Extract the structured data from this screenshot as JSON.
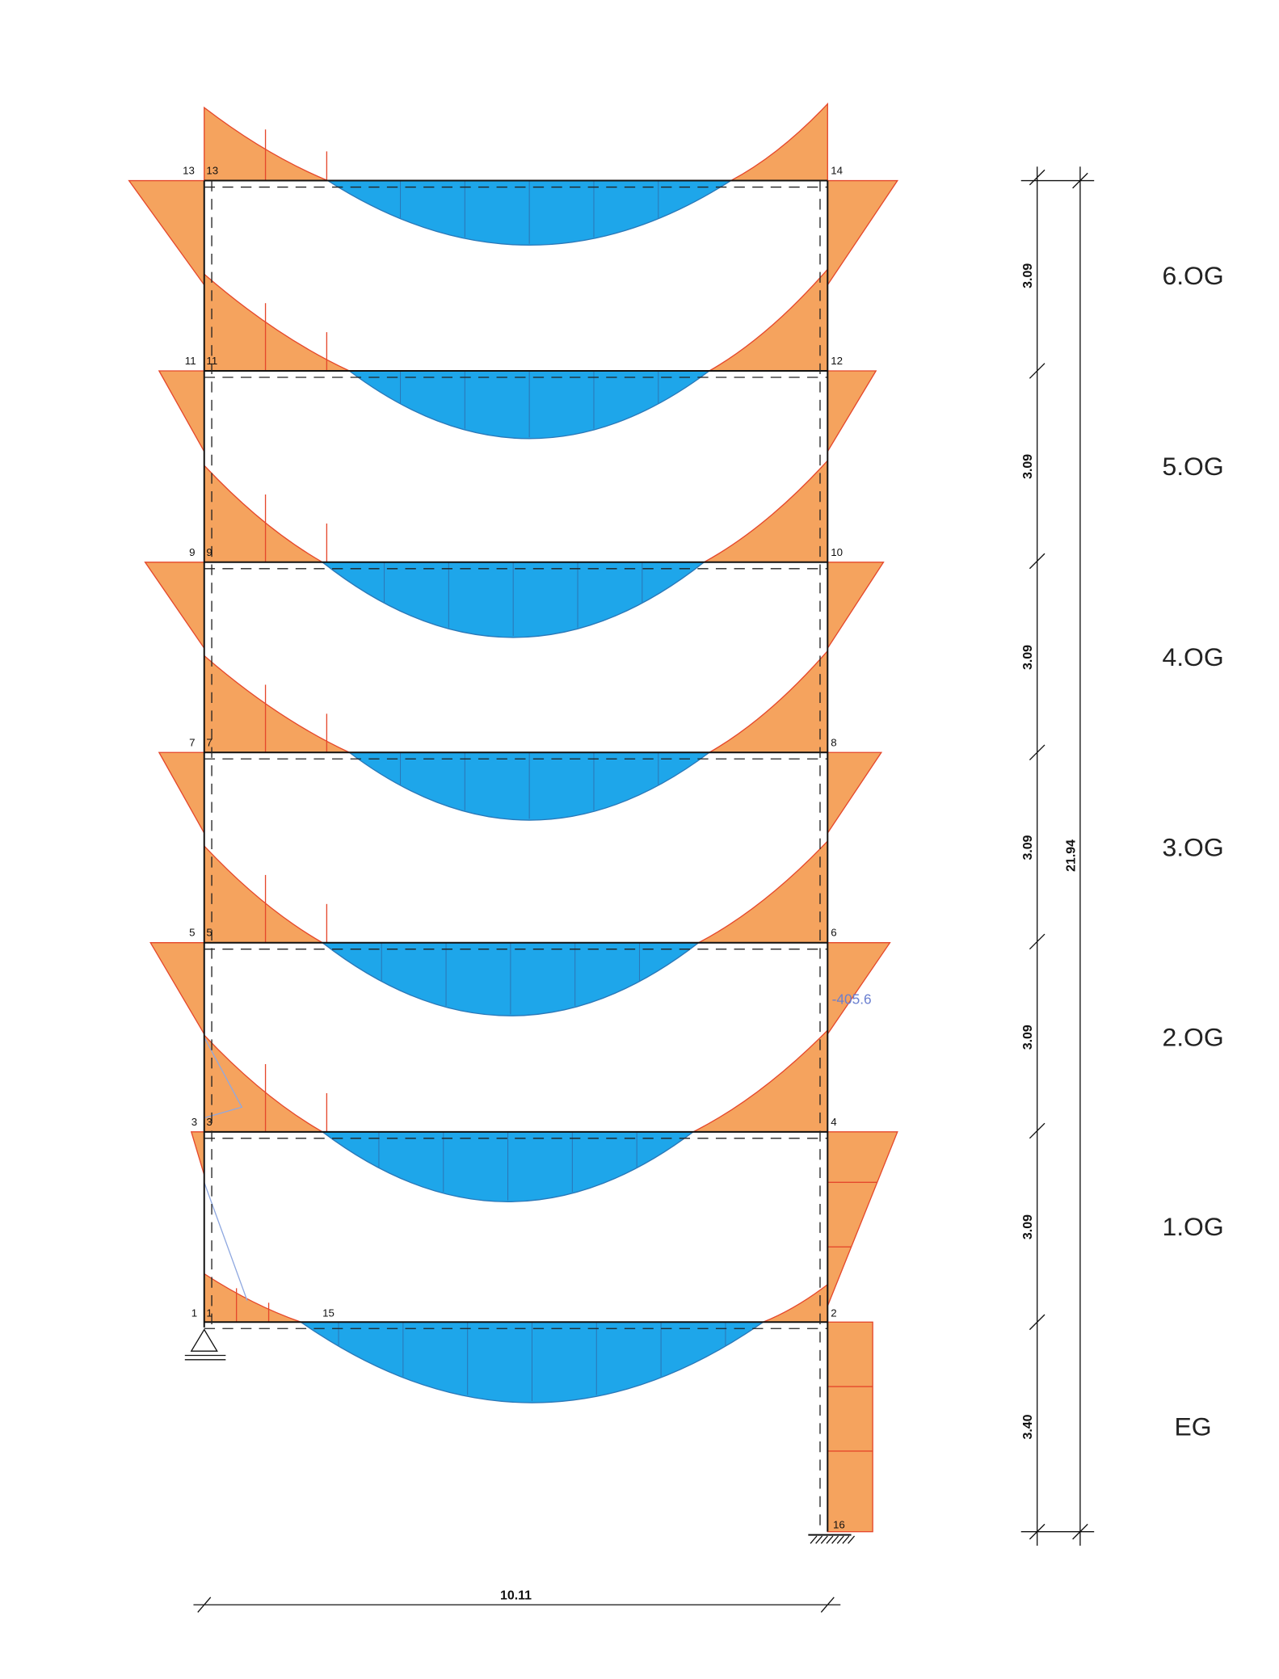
{
  "node_labels": [
    "13",
    "13",
    "14",
    "11",
    "11",
    "12",
    "9",
    "9",
    "10",
    "7",
    "7",
    "8",
    "5",
    "5",
    "6",
    "3",
    "3",
    "4",
    "1",
    "1",
    "2",
    "15",
    "16"
  ],
  "annotation": "-405.6",
  "storey_heights": [
    "3.09",
    "3.09",
    "3.09",
    "3.09",
    "3.09",
    "3.09",
    "3.40"
  ],
  "total_height": "21.94",
  "span": "10.11",
  "floors": [
    "6.OG",
    "5.OG",
    "4.OG",
    "3.OG",
    "2.OG",
    "1.OG",
    "EG"
  ]
}
